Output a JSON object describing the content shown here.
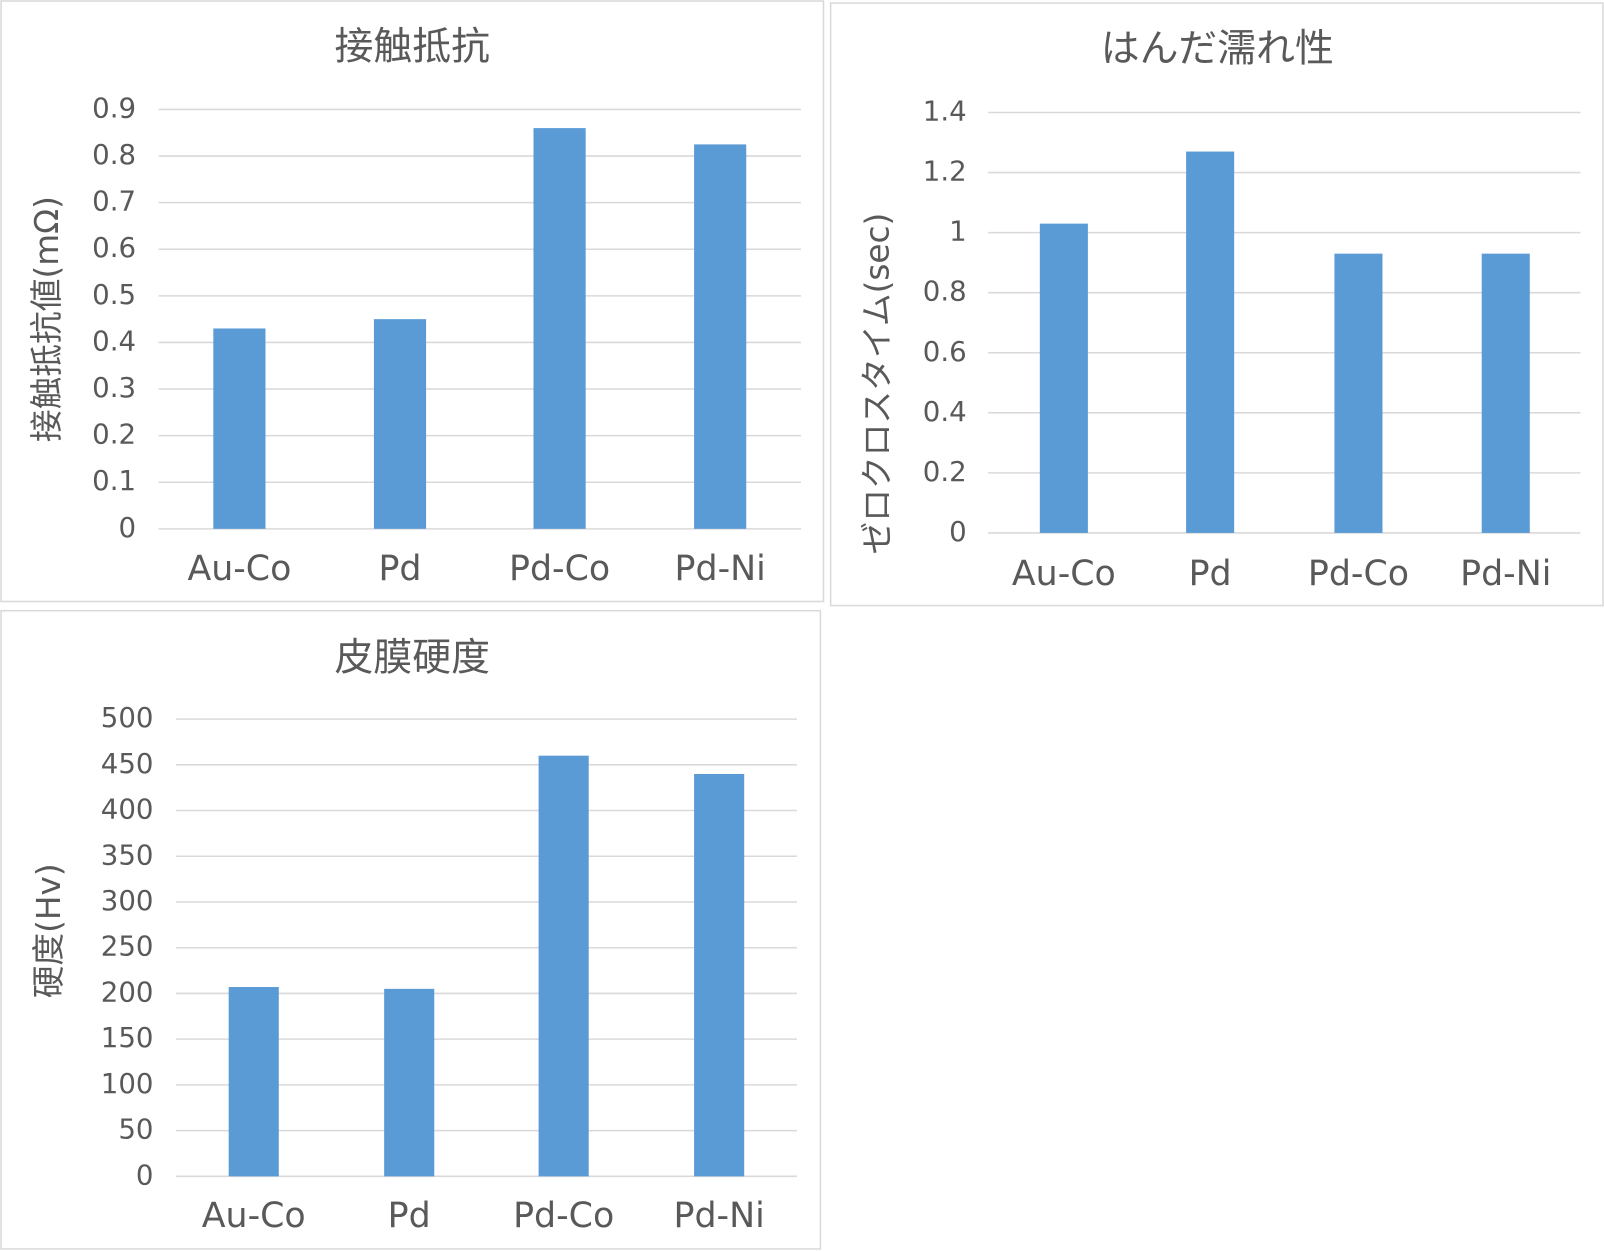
{
  "chart_data": [
    {
      "type": "bar",
      "title": "接触抵抗",
      "y_label": "接触抵抗値(mΩ)",
      "categories": [
        "Au-Co",
        "Pd",
        "Pd-Co",
        "Pd-Ni"
      ],
      "values": [
        0.43,
        0.45,
        0.86,
        0.825
      ],
      "color": "#5b9bd5",
      "ylim": [
        0,
        0.9
      ],
      "yticks": [
        0,
        0.1,
        0.2,
        0.3,
        0.4,
        0.5,
        0.6,
        0.7,
        0.8,
        0.9
      ],
      "grid": true
    },
    {
      "type": "bar",
      "title": "はんだ濡れ性",
      "y_label": "ゼロクロスタイム(sec)",
      "categories": [
        "Au-Co",
        "Pd",
        "Pd-Co",
        "Pd-Ni"
      ],
      "values": [
        1.03,
        1.27,
        0.93,
        0.93
      ],
      "color": "#5b9bd5",
      "ylim": [
        0,
        1.4
      ],
      "yticks": [
        0,
        0.2,
        0.4,
        0.6,
        0.8,
        1,
        1.2,
        1.4
      ],
      "grid": true
    },
    {
      "type": "bar",
      "title": "皮膜硬度",
      "y_label": "硬度(Hv)",
      "categories": [
        "Au-Co",
        "Pd",
        "Pd-Co",
        "Pd-Ni"
      ],
      "values": [
        207,
        205,
        460,
        440
      ],
      "color": "#5b9bd5",
      "ylim": [
        0,
        500
      ],
      "yticks": [
        0,
        50,
        100,
        150,
        200,
        250,
        300,
        350,
        400,
        450,
        500
      ],
      "grid": true
    }
  ]
}
